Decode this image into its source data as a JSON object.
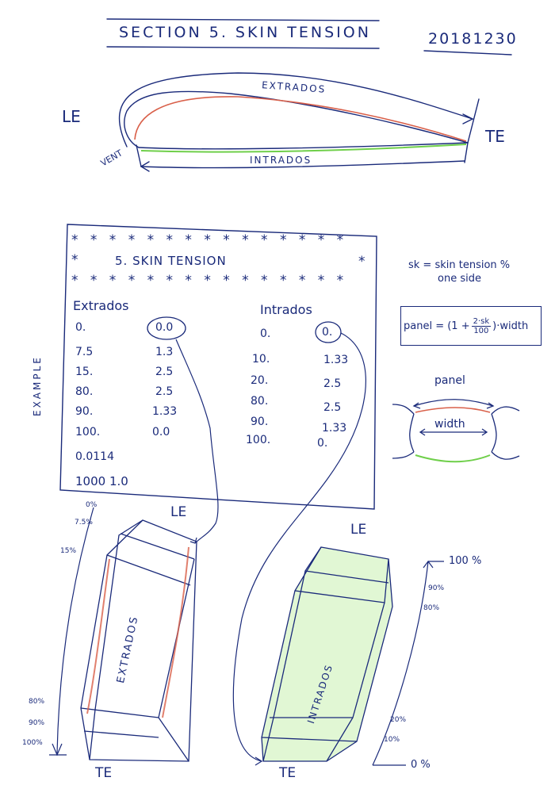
{
  "header": {
    "title": "SECTION 5. SKIN TENSION",
    "date": "20181230"
  },
  "airfoil": {
    "le": "LE",
    "te": "TE",
    "extrados": "EXTRADOS",
    "intrados": "INTRADOS",
    "vent": "VENT"
  },
  "box": {
    "stars_top": "* * * * * * * * * * * * * * *",
    "star_left": "*",
    "star_right": "*",
    "heading": "5. SKIN TENSION",
    "stars_bottom": "* * * * * * * * * * * * * * *",
    "extrados_head": "Extrados",
    "intrados_head": "Intrados",
    "extrados_rows": [
      [
        "0.",
        "0.0"
      ],
      [
        "7.5",
        "1.3"
      ],
      [
        "15.",
        "2.5"
      ],
      [
        "80.",
        "2.5"
      ],
      [
        "90.",
        "1.33"
      ],
      [
        "100.",
        "0.0"
      ]
    ],
    "intrados_rows": [
      [
        "0.",
        "0."
      ],
      [
        "10.",
        "1.33"
      ],
      [
        "20.",
        "2.5"
      ],
      [
        "80.",
        "2.5"
      ],
      [
        "90.",
        "1.33"
      ],
      [
        "100.",
        "0."
      ]
    ],
    "footer1": "0.0114",
    "footer2": "1000  1.0"
  },
  "side": {
    "example": "EXAMPLE",
    "note1": "sk = skin tension %",
    "note2": "one side",
    "formula_lhs": "panel = (1 +",
    "formula_num": "2·sk",
    "formula_den": "100",
    "formula_rhs": ")·width",
    "panel": "panel",
    "width": "width"
  },
  "panels": {
    "left_label": "EXTRADOS",
    "right_label": "INTRADOS",
    "le": "LE",
    "te": "TE",
    "left_ticks": [
      "0%",
      "7.5%",
      "15%",
      "80%",
      "90%",
      "100%"
    ],
    "right_ticks": [
      "100 %",
      "90%",
      "80%",
      "20%",
      "10%",
      "0 %"
    ]
  },
  "colors": {
    "ink": "#1a2a7a",
    "red": "#d9604a",
    "green": "#6fcf4a"
  }
}
